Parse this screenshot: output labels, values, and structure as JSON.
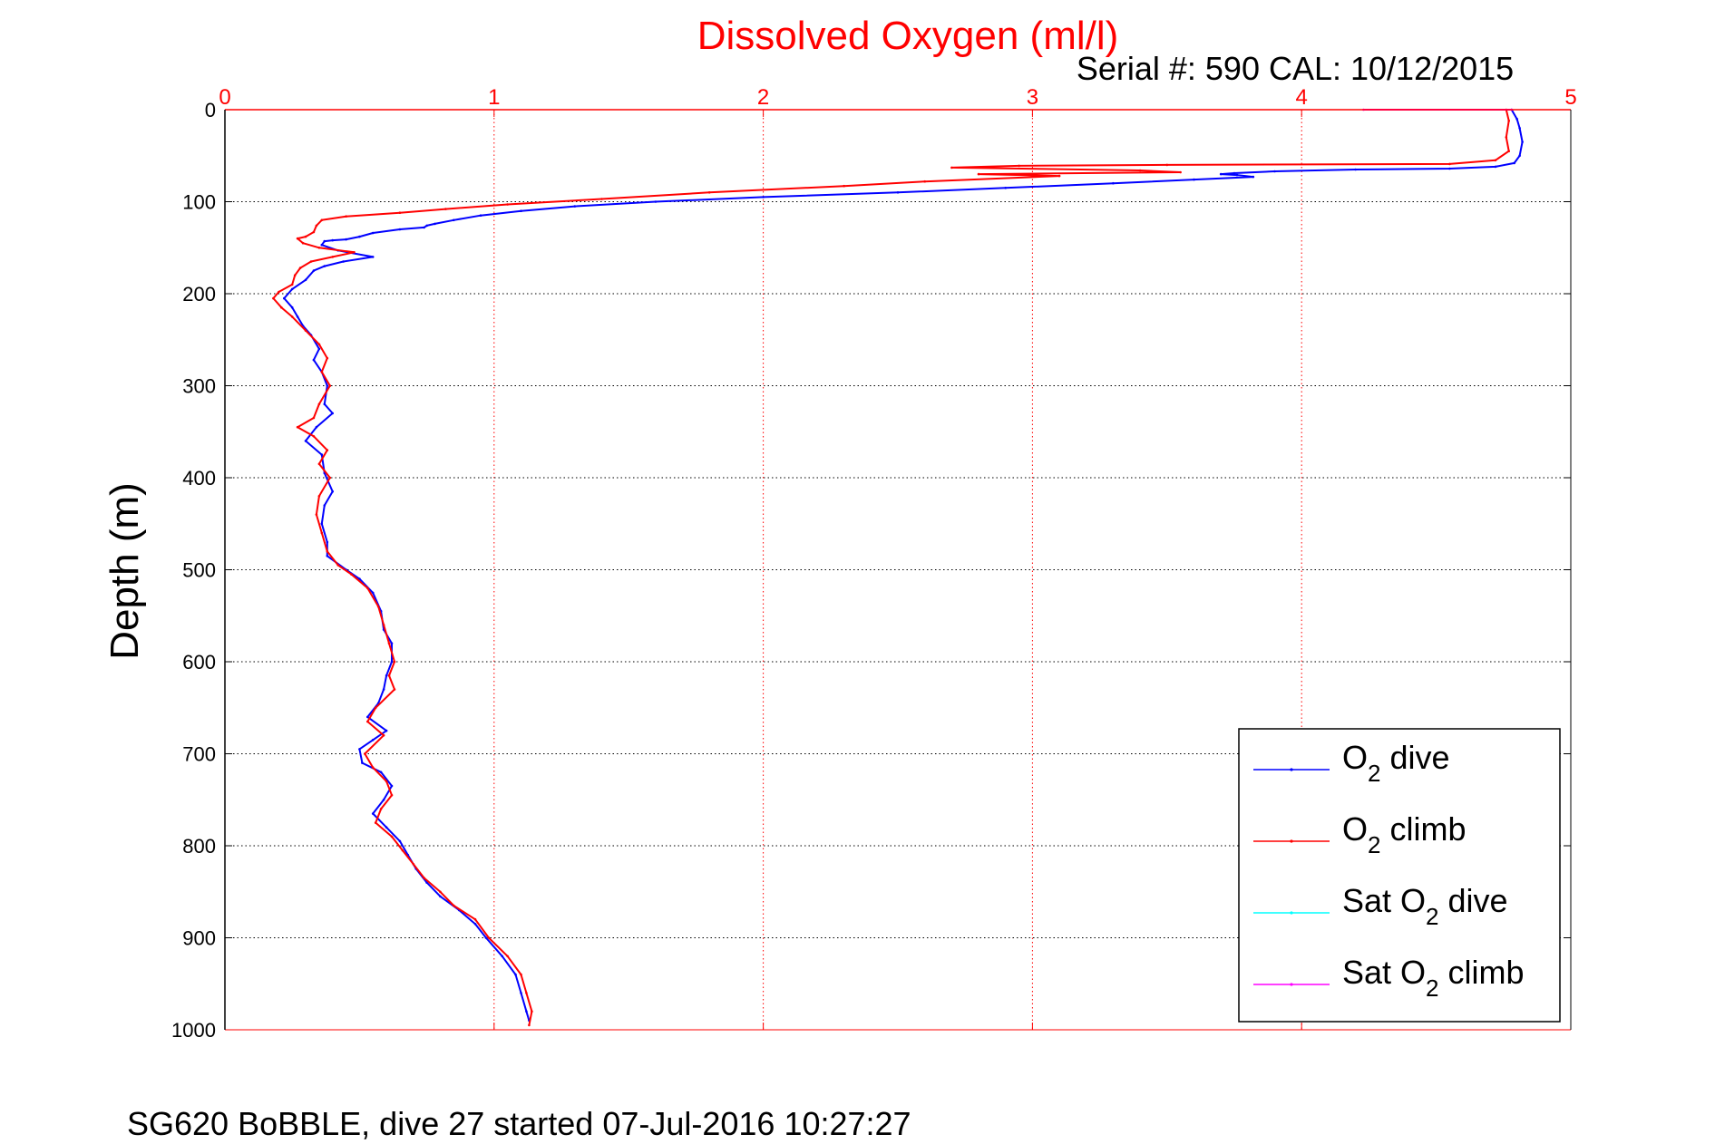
{
  "chart_data": {
    "type": "line",
    "title": "Dissolved Oxygen (ml/l)",
    "subtitle": "Serial #: 590  CAL: 10/12/2015",
    "xlabel": "",
    "ylabel": "Depth (m)",
    "xlim": [
      0,
      5
    ],
    "ylim": [
      1000,
      0
    ],
    "x_ticks": [
      "0",
      "1",
      "2",
      "3",
      "4",
      "5"
    ],
    "y_ticks": [
      "0",
      "100",
      "200",
      "300",
      "400",
      "500",
      "600",
      "700",
      "800",
      "900",
      "1000"
    ],
    "x_axis_position": "top",
    "y_axis_reversed": true,
    "grid": true,
    "legend_position": "bottom-right",
    "caption": "SG620 BoBBLE, dive 27 started 07-Jul-2016 10:27:27",
    "series": [
      {
        "name": "O2 dive",
        "legend_label": "O",
        "legend_suffix": " dive",
        "color": "#0000ff",
        "points": [
          [
            4.78,
            0
          ],
          [
            4.8,
            10
          ],
          [
            4.81,
            20
          ],
          [
            4.82,
            35
          ],
          [
            4.81,
            50
          ],
          [
            4.79,
            58
          ],
          [
            4.72,
            62
          ],
          [
            4.55,
            64
          ],
          [
            4.2,
            65
          ],
          [
            3.9,
            67
          ],
          [
            3.75,
            69
          ],
          [
            3.7,
            70
          ],
          [
            3.76,
            71
          ],
          [
            3.82,
            73
          ],
          [
            3.6,
            76
          ],
          [
            3.3,
            80
          ],
          [
            2.9,
            85
          ],
          [
            2.5,
            90
          ],
          [
            2.0,
            95
          ],
          [
            1.6,
            100
          ],
          [
            1.3,
            105
          ],
          [
            1.1,
            110
          ],
          [
            0.95,
            115
          ],
          [
            0.85,
            120
          ],
          [
            0.78,
            124
          ],
          [
            0.75,
            126
          ],
          [
            0.74,
            128
          ],
          [
            0.65,
            130
          ],
          [
            0.55,
            134
          ],
          [
            0.5,
            138
          ],
          [
            0.45,
            141
          ],
          [
            0.4,
            142
          ],
          [
            0.37,
            143
          ],
          [
            0.36,
            147
          ],
          [
            0.42,
            153
          ],
          [
            0.55,
            160
          ],
          [
            0.44,
            165
          ],
          [
            0.37,
            170
          ],
          [
            0.33,
            175
          ],
          [
            0.3,
            185
          ],
          [
            0.25,
            195
          ],
          [
            0.22,
            205
          ],
          [
            0.25,
            215
          ],
          [
            0.27,
            225
          ],
          [
            0.29,
            235
          ],
          [
            0.32,
            245
          ],
          [
            0.35,
            260
          ],
          [
            0.33,
            272
          ],
          [
            0.36,
            285
          ],
          [
            0.38,
            300
          ],
          [
            0.37,
            320
          ],
          [
            0.4,
            330
          ],
          [
            0.34,
            345
          ],
          [
            0.3,
            360
          ],
          [
            0.36,
            375
          ],
          [
            0.37,
            395
          ],
          [
            0.4,
            415
          ],
          [
            0.37,
            430
          ],
          [
            0.36,
            450
          ],
          [
            0.38,
            470
          ],
          [
            0.38,
            485
          ],
          [
            0.45,
            500
          ],
          [
            0.5,
            510
          ],
          [
            0.55,
            525
          ],
          [
            0.58,
            545
          ],
          [
            0.59,
            565
          ],
          [
            0.62,
            580
          ],
          [
            0.62,
            600
          ],
          [
            0.6,
            615
          ],
          [
            0.59,
            630
          ],
          [
            0.57,
            645
          ],
          [
            0.53,
            660
          ],
          [
            0.6,
            675
          ],
          [
            0.55,
            685
          ],
          [
            0.5,
            695
          ],
          [
            0.51,
            710
          ],
          [
            0.58,
            720
          ],
          [
            0.62,
            735
          ],
          [
            0.59,
            750
          ],
          [
            0.55,
            765
          ],
          [
            0.6,
            780
          ],
          [
            0.65,
            795
          ],
          [
            0.68,
            810
          ],
          [
            0.71,
            825
          ],
          [
            0.75,
            840
          ],
          [
            0.8,
            855
          ],
          [
            0.87,
            870
          ],
          [
            0.93,
            885
          ],
          [
            0.97,
            900
          ],
          [
            1.03,
            920
          ],
          [
            1.08,
            940
          ],
          [
            1.1,
            960
          ],
          [
            1.12,
            980
          ],
          [
            1.13,
            990
          ]
        ]
      },
      {
        "name": "O2 climb",
        "legend_label": "O",
        "legend_suffix": " climb",
        "color": "#ff0000",
        "points": [
          [
            4.76,
            0
          ],
          [
            4.77,
            12
          ],
          [
            4.76,
            30
          ],
          [
            4.77,
            45
          ],
          [
            4.72,
            55
          ],
          [
            4.55,
            59
          ],
          [
            3.5,
            60
          ],
          [
            2.95,
            61
          ],
          [
            2.7,
            63
          ],
          [
            3.4,
            66
          ],
          [
            3.55,
            68
          ],
          [
            2.8,
            70
          ],
          [
            3.1,
            72
          ],
          [
            2.6,
            78
          ],
          [
            2.3,
            83
          ],
          [
            1.8,
            90
          ],
          [
            1.4,
            97
          ],
          [
            1.05,
            103
          ],
          [
            0.82,
            108
          ],
          [
            0.65,
            112
          ],
          [
            0.45,
            116
          ],
          [
            0.36,
            120
          ],
          [
            0.34,
            126
          ],
          [
            0.33,
            133
          ],
          [
            0.3,
            138
          ],
          [
            0.27,
            140
          ],
          [
            0.29,
            145
          ],
          [
            0.35,
            150
          ],
          [
            0.48,
            155
          ],
          [
            0.4,
            160
          ],
          [
            0.32,
            165
          ],
          [
            0.28,
            172
          ],
          [
            0.26,
            180
          ],
          [
            0.25,
            190
          ],
          [
            0.2,
            198
          ],
          [
            0.18,
            205
          ],
          [
            0.21,
            215
          ],
          [
            0.25,
            225
          ],
          [
            0.3,
            240
          ],
          [
            0.35,
            255
          ],
          [
            0.38,
            270
          ],
          [
            0.36,
            285
          ],
          [
            0.39,
            300
          ],
          [
            0.35,
            320
          ],
          [
            0.33,
            335
          ],
          [
            0.27,
            345
          ],
          [
            0.33,
            355
          ],
          [
            0.38,
            370
          ],
          [
            0.35,
            385
          ],
          [
            0.39,
            400
          ],
          [
            0.35,
            420
          ],
          [
            0.34,
            440
          ],
          [
            0.36,
            460
          ],
          [
            0.38,
            480
          ],
          [
            0.42,
            495
          ],
          [
            0.47,
            505
          ],
          [
            0.53,
            520
          ],
          [
            0.57,
            540
          ],
          [
            0.59,
            560
          ],
          [
            0.61,
            580
          ],
          [
            0.63,
            600
          ],
          [
            0.61,
            615
          ],
          [
            0.63,
            630
          ],
          [
            0.56,
            650
          ],
          [
            0.53,
            665
          ],
          [
            0.59,
            680
          ],
          [
            0.52,
            700
          ],
          [
            0.55,
            715
          ],
          [
            0.6,
            730
          ],
          [
            0.62,
            745
          ],
          [
            0.58,
            760
          ],
          [
            0.56,
            775
          ],
          [
            0.62,
            790
          ],
          [
            0.66,
            805
          ],
          [
            0.7,
            820
          ],
          [
            0.74,
            835
          ],
          [
            0.8,
            850
          ],
          [
            0.85,
            865
          ],
          [
            0.93,
            880
          ],
          [
            0.98,
            900
          ],
          [
            1.05,
            920
          ],
          [
            1.1,
            940
          ],
          [
            1.12,
            960
          ],
          [
            1.14,
            980
          ],
          [
            1.13,
            995
          ]
        ]
      },
      {
        "name": "Sat O2 dive",
        "legend_label": "Sat O",
        "legend_suffix": " dive",
        "color": "#00ffff",
        "points": []
      },
      {
        "name": "Sat O2 climb",
        "legend_label": "Sat O",
        "legend_suffix": " climb",
        "color": "#ff00ff",
        "points": [
          [
            4.23,
            0
          ],
          [
            4.78,
            0
          ]
        ]
      }
    ]
  }
}
